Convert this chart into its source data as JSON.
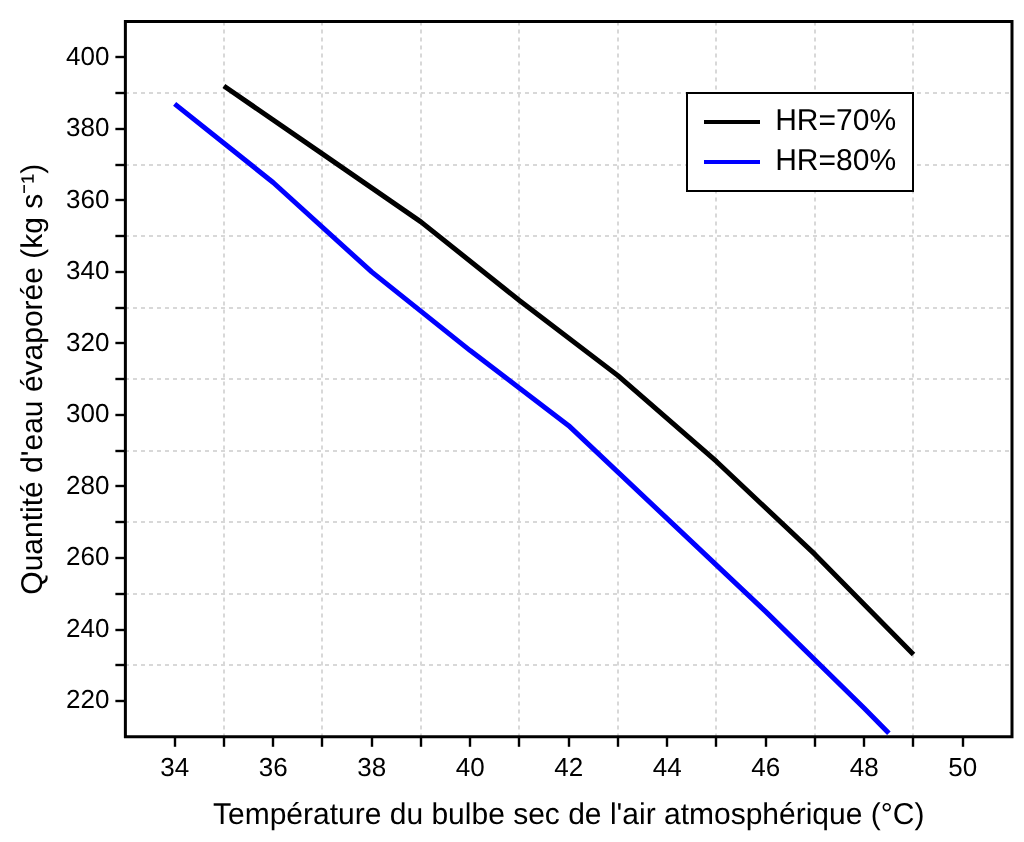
{
  "chart_data": {
    "type": "line",
    "xlabel": "Température du bulbe sec de l'air atmosphérique (°C)",
    "ylabel": "Quantité d'eau évaporée (kg s⁻¹)",
    "series": [
      {
        "name": "HR=70%",
        "color": "#000000",
        "x": [
          35,
          37,
          39,
          41,
          43,
          45,
          47,
          49
        ],
        "values": [
          392,
          373,
          354,
          332,
          311,
          287,
          261,
          233
        ]
      },
      {
        "name": "HR=80%",
        "color": "#0000ff",
        "x": [
          34,
          36,
          38,
          40,
          42,
          44,
          46,
          48,
          48.5
        ],
        "values": [
          387,
          365,
          340,
          318,
          297,
          271,
          245,
          218,
          211
        ]
      }
    ],
    "xlim": [
      33,
      51
    ],
    "xticks": [
      34,
      {
        "value": 35,
        "label": null
      },
      36,
      {
        "value": 37,
        "label": null
      },
      38,
      {
        "value": 39,
        "label": null
      },
      40,
      {
        "value": 41,
        "label": null
      },
      42,
      {
        "value": 43,
        "label": null
      },
      44,
      {
        "value": 45,
        "label": null
      },
      46,
      {
        "value": 47,
        "label": null
      },
      48,
      {
        "value": 49,
        "label": null
      },
      50
    ],
    "ylim": [
      210,
      410
    ],
    "yticks": [
      220,
      {
        "value": 230,
        "label": null
      },
      240,
      {
        "value": 250,
        "label": null
      },
      260,
      {
        "value": 270,
        "label": null
      },
      280,
      {
        "value": 290,
        "label": null
      },
      300,
      {
        "value": 310,
        "label": null
      },
      320,
      {
        "value": 330,
        "label": null
      },
      340,
      {
        "value": 350,
        "label": null
      },
      360,
      {
        "value": 370,
        "label": null
      },
      380,
      {
        "value": 390,
        "label": null
      },
      400
    ],
    "grid": true,
    "legend": "top right",
    "marker": "none",
    "line_style": "solid"
  }
}
